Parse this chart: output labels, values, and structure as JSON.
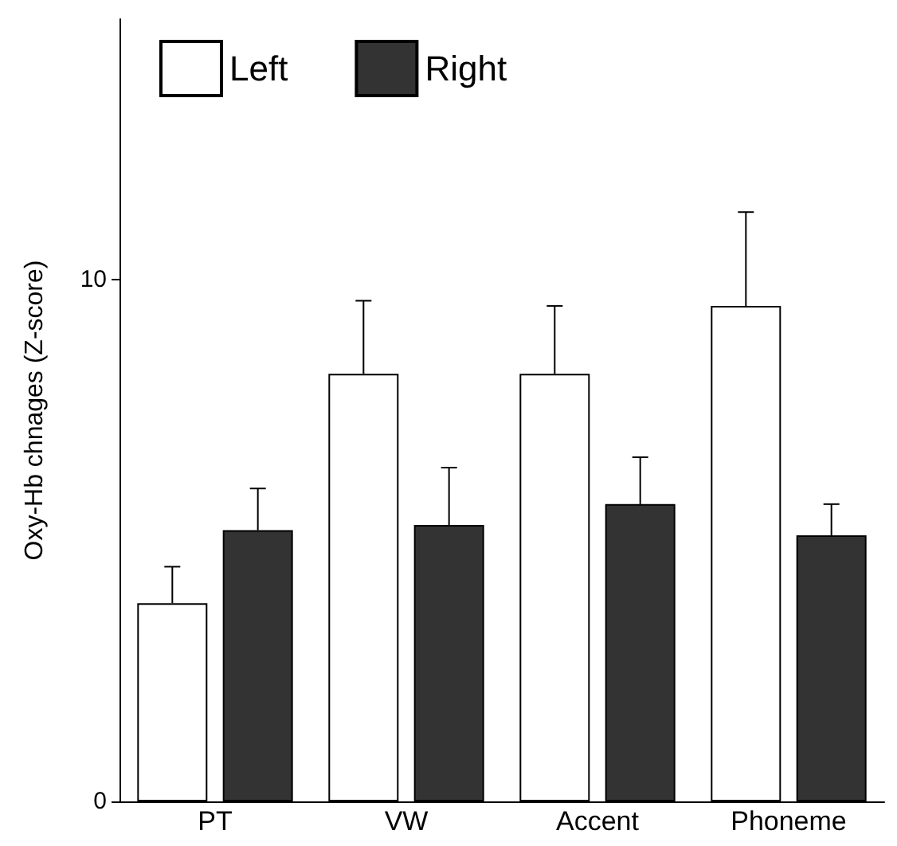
{
  "chart_data": {
    "type": "bar",
    "ylabel": "Oxy-Hb chnages (Z-score)",
    "categories": [
      "PT",
      "VW",
      "Accent",
      "Phoneme"
    ],
    "series": [
      {
        "name": "Left",
        "color": "#ffffff",
        "values": [
          3.8,
          8.2,
          8.2,
          9.5
        ],
        "errors": [
          [
            3.8,
            4.5
          ],
          [
            8.2,
            9.6
          ],
          [
            8.2,
            9.5
          ],
          [
            9.5,
            11.3
          ]
        ]
      },
      {
        "name": "Right",
        "color": "#333333",
        "values": [
          5.2,
          5.3,
          5.7,
          5.1
        ],
        "errors": [
          [
            5.2,
            6.0
          ],
          [
            5.3,
            6.4
          ],
          [
            5.7,
            6.6
          ],
          [
            5.1,
            5.7
          ]
        ]
      }
    ],
    "ylim": [
      0,
      15
    ],
    "yticks": [
      0,
      10
    ],
    "grid": false,
    "legend": "top left"
  }
}
